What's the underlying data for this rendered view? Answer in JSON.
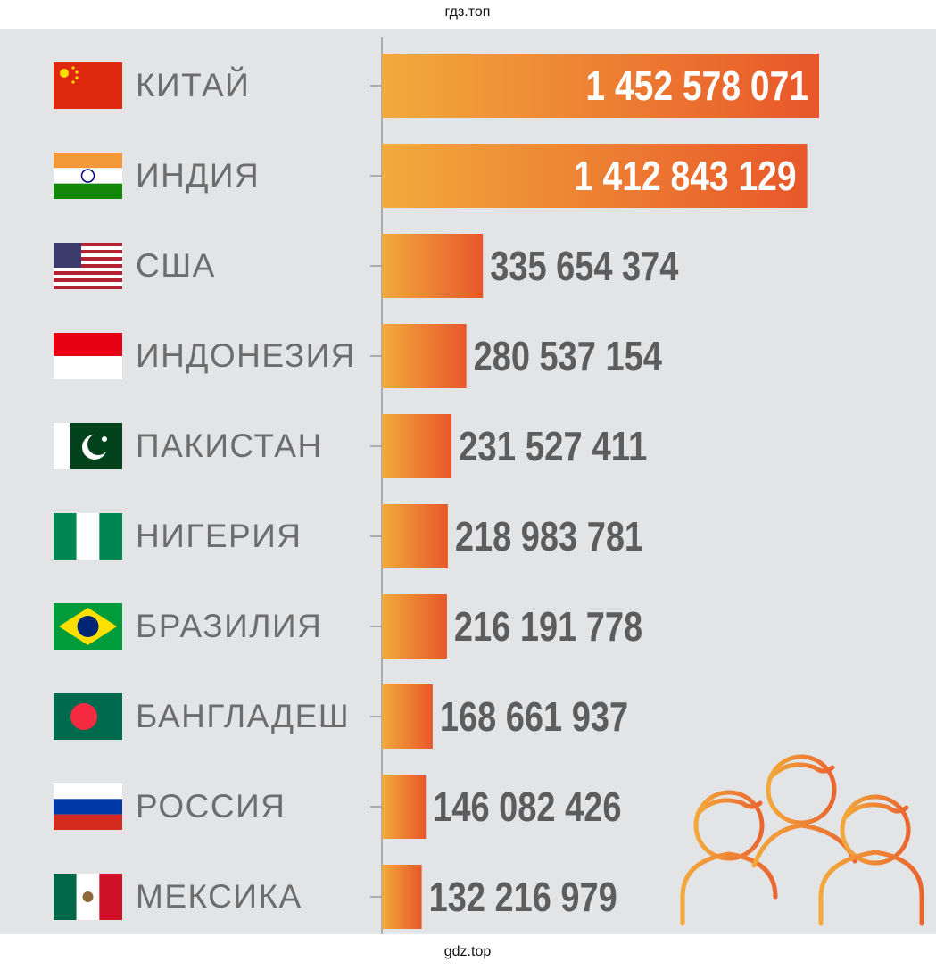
{
  "header": "гдз.топ",
  "footer": "gdz.top",
  "chart_data": {
    "type": "bar",
    "orientation": "horizontal",
    "categories": [
      "КИТАЙ",
      "ИНДИЯ",
      "США",
      "ИНДОНЕЗИЯ",
      "ПАКИСТАН",
      "НИГЕРИЯ",
      "БРАЗИЛИЯ",
      "БАНГЛАДЕШ",
      "РОССИЯ",
      "МЕКСИКА"
    ],
    "values": [
      1452578071,
      1412843129,
      335654374,
      280537154,
      231527411,
      218983781,
      216191778,
      168661937,
      146082426,
      132216979
    ],
    "value_labels": [
      "1 452 578 071",
      "1 412 843 129",
      "335 654 374",
      "280 537 154",
      "231 527 411",
      "218 983 781",
      "216 191 778",
      "168 661 937",
      "146 082 426",
      "132 216 979"
    ],
    "colors": [
      "#f2aa3c",
      "#e8572a"
    ]
  }
}
